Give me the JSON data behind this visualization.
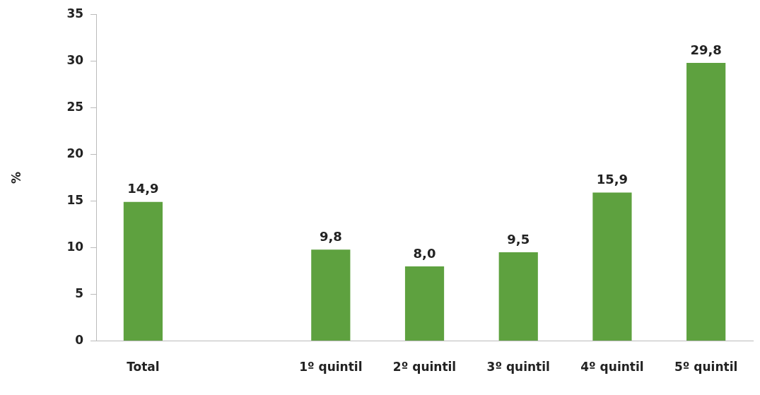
{
  "chart_data": {
    "type": "bar",
    "ylabel": "%",
    "categories": [
      "Total",
      null,
      "1º quintil",
      "2º quintil",
      "3º quintil",
      "4º quintil",
      "5º quintil"
    ],
    "values": [
      14.9,
      null,
      9.8,
      8.0,
      9.5,
      15.9,
      29.8
    ],
    "value_labels": [
      "14,9",
      null,
      "9,8",
      "8,0",
      "9,5",
      "15,9",
      "29,8"
    ],
    "color": "#5ea13f",
    "ylim": [
      0,
      35
    ],
    "yticks": [
      0,
      5,
      10,
      15,
      20,
      25,
      30,
      35
    ],
    "grid": false,
    "legend": false
  }
}
